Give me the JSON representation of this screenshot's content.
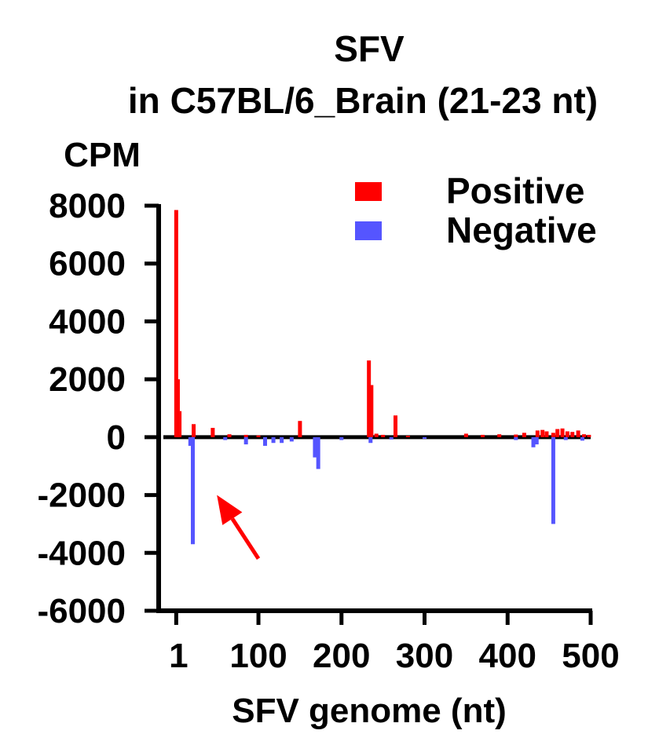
{
  "chart_data": {
    "type": "bar",
    "title": "SFV",
    "subtitle": "in C57BL/6_Brain (21-23 nt)",
    "ylabel": "CPM",
    "xlabel": "SFV genome (nt)",
    "xlim": [
      -5,
      500
    ],
    "ylim": [
      -6000,
      8000
    ],
    "xticks": [
      1,
      100,
      200,
      300,
      400,
      500
    ],
    "yticks": [
      8000,
      6000,
      4000,
      2000,
      0,
      -2000,
      -4000,
      -6000
    ],
    "legend_position": "top-right",
    "grid": false,
    "series": [
      {
        "name": "Positive",
        "color": "#ff0000",
        "points": [
          {
            "x": 1,
            "y": 7850
          },
          {
            "x": 3,
            "y": 2000
          },
          {
            "x": 5,
            "y": 900
          },
          {
            "x": 22,
            "y": 450
          },
          {
            "x": 45,
            "y": 320
          },
          {
            "x": 65,
            "y": 100
          },
          {
            "x": 85,
            "y": 80
          },
          {
            "x": 100,
            "y": 60
          },
          {
            "x": 150,
            "y": 560
          },
          {
            "x": 233,
            "y": 2650
          },
          {
            "x": 236,
            "y": 1800
          },
          {
            "x": 242,
            "y": 120
          },
          {
            "x": 250,
            "y": 80
          },
          {
            "x": 265,
            "y": 750
          },
          {
            "x": 280,
            "y": 50
          },
          {
            "x": 350,
            "y": 120
          },
          {
            "x": 370,
            "y": 80
          },
          {
            "x": 390,
            "y": 100
          },
          {
            "x": 410,
            "y": 90
          },
          {
            "x": 420,
            "y": 150
          },
          {
            "x": 436,
            "y": 230
          },
          {
            "x": 442,
            "y": 250
          },
          {
            "x": 447,
            "y": 200
          },
          {
            "x": 455,
            "y": 150
          },
          {
            "x": 460,
            "y": 280
          },
          {
            "x": 466,
            "y": 300
          },
          {
            "x": 472,
            "y": 200
          },
          {
            "x": 478,
            "y": 180
          },
          {
            "x": 485,
            "y": 230
          },
          {
            "x": 492,
            "y": 100
          },
          {
            "x": 498,
            "y": 80
          }
        ]
      },
      {
        "name": "Negative",
        "color": "#5555ff",
        "points": [
          {
            "x": 18,
            "y": -300
          },
          {
            "x": 21,
            "y": -3700
          },
          {
            "x": 60,
            "y": -100
          },
          {
            "x": 85,
            "y": -250
          },
          {
            "x": 108,
            "y": -300
          },
          {
            "x": 118,
            "y": -200
          },
          {
            "x": 128,
            "y": -200
          },
          {
            "x": 140,
            "y": -150
          },
          {
            "x": 168,
            "y": -700
          },
          {
            "x": 172,
            "y": -1100
          },
          {
            "x": 200,
            "y": -100
          },
          {
            "x": 235,
            "y": -200
          },
          {
            "x": 260,
            "y": -80
          },
          {
            "x": 300,
            "y": -60
          },
          {
            "x": 410,
            "y": -100
          },
          {
            "x": 431,
            "y": -350
          },
          {
            "x": 435,
            "y": -250
          },
          {
            "x": 455,
            "y": -3000
          },
          {
            "x": 470,
            "y": -100
          },
          {
            "x": 490,
            "y": -120
          }
        ]
      }
    ],
    "annotations": [
      {
        "type": "arrow",
        "color": "#ff0000",
        "from": {
          "x": 100,
          "y": -4200
        },
        "to": {
          "x": 50,
          "y": -2000
        }
      }
    ]
  }
}
